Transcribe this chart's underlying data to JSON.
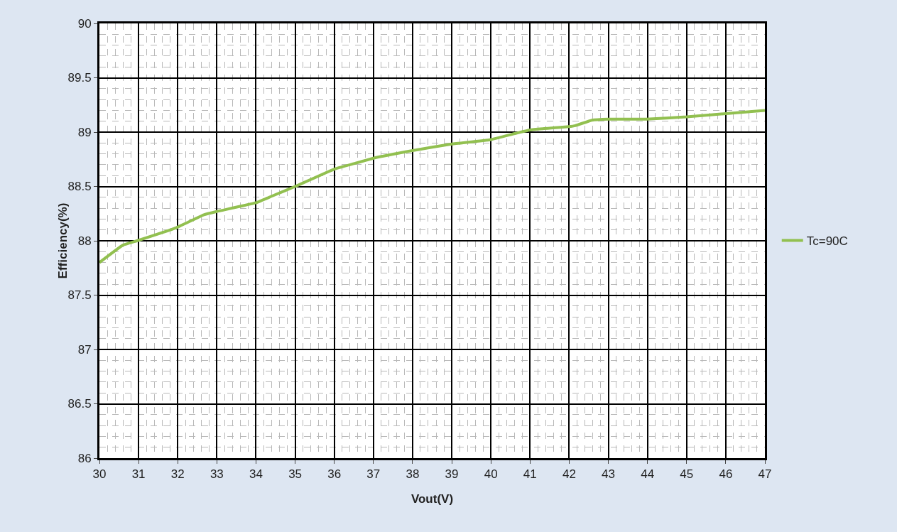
{
  "chart_data": {
    "type": "line",
    "xlabel": "Vout(V)",
    "ylabel": "Efficiency(%)",
    "x": [
      30,
      30.6,
      30.96,
      31.96,
      32.67,
      33.0,
      34.0,
      34.4,
      35.0,
      36.0,
      36.5,
      37.0,
      38.0,
      39.0,
      39.98,
      40.65,
      41.0,
      41.98,
      42.16,
      42.58,
      43.0,
      43.97,
      45.0,
      46.0,
      47.0
    ],
    "series": [
      {
        "name": "Tc=90C",
        "color": "#92c050",
        "values": [
          87.8,
          87.96,
          88.0,
          88.12,
          88.24,
          88.27,
          88.35,
          88.41,
          88.5,
          88.66,
          88.71,
          88.76,
          88.83,
          88.89,
          88.93,
          88.99,
          89.02,
          89.05,
          89.06,
          89.11,
          89.12,
          89.12,
          89.14,
          89.17,
          89.2
        ]
      }
    ],
    "xlim": [
      30,
      47
    ],
    "xticks": [
      30,
      31,
      32,
      33,
      34,
      35,
      36,
      37,
      38,
      39,
      40,
      41,
      42,
      43,
      44,
      45,
      46,
      47
    ],
    "ylim": [
      86,
      90
    ],
    "yticks": [
      86,
      86.5,
      87,
      87.5,
      88,
      88.5,
      89,
      89.5,
      90
    ],
    "grid": true,
    "legend": "right",
    "marker": "none",
    "line_style": "solid"
  }
}
